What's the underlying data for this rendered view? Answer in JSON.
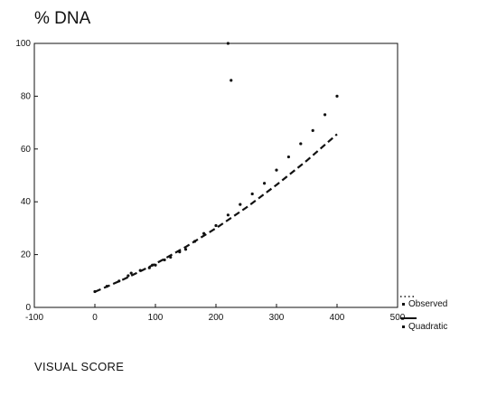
{
  "chart_data": {
    "type": "scatter",
    "ylabel": "% DNA",
    "xlabel": "VISUAL SCORE",
    "xlim": [
      -100,
      500
    ],
    "ylim": [
      0,
      100
    ],
    "xticks": [
      "-100",
      "0",
      "100",
      "200",
      "300",
      "400",
      "500"
    ],
    "xtick_values": [
      -100,
      0,
      100,
      200,
      300,
      400,
      500
    ],
    "yticks": [
      "0",
      "20",
      "40",
      "60",
      "80",
      "100"
    ],
    "ytick_values": [
      0,
      20,
      40,
      60,
      80,
      100
    ],
    "grid": false,
    "legend_position": "right",
    "series": [
      {
        "name": "Observed",
        "style": "dots",
        "x": [
          0,
          20,
          40,
          55,
          60,
          75,
          90,
          95,
          100,
          115,
          125,
          140,
          150,
          165,
          180,
          200,
          220,
          240,
          260,
          280,
          300,
          320,
          340,
          360,
          380,
          400,
          220,
          225
        ],
        "y": [
          6,
          8,
          10,
          12,
          13,
          14,
          15,
          16,
          16,
          18,
          19,
          21,
          22,
          25,
          28,
          31,
          35,
          39,
          43,
          47,
          52,
          57,
          62,
          67,
          73,
          80,
          100,
          86
        ]
      },
      {
        "name": "Quadratic",
        "style": "dashed",
        "x": [
          0,
          50,
          100,
          150,
          200,
          250,
          300,
          350,
          400
        ],
        "y": [
          5.9,
          10.9,
          16.5,
          22.9,
          30.0,
          37.8,
          46.4,
          55.6,
          65.6
        ]
      }
    ]
  }
}
